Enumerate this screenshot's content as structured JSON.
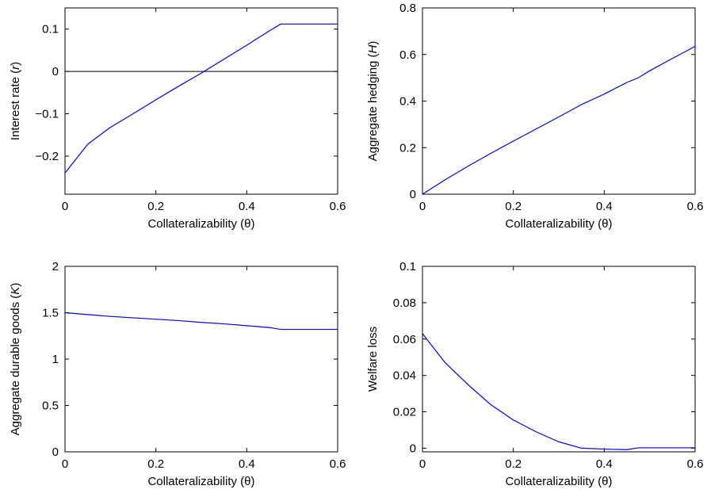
{
  "colors": {
    "series": "#0000ff",
    "axes": "#000000",
    "reference": "#000000"
  },
  "chart_data": [
    {
      "type": "line",
      "xlabel": "Collateralizability (θ)",
      "ylabel_parts": [
        "Interest rate (",
        "r",
        ")"
      ],
      "xlim": [
        0,
        0.6
      ],
      "ylim": [
        -0.29,
        0.15
      ],
      "xticks": [
        0,
        0.2,
        0.4,
        0.6
      ],
      "xtick_labels": [
        "0",
        "0.2",
        "0.4",
        "0.6"
      ],
      "yticks": [
        -0.2,
        -0.1,
        0,
        0.1
      ],
      "ytick_labels": [
        "−0.2",
        "−0.1",
        "0",
        "0.1"
      ],
      "hline": 0,
      "series": [
        {
          "x": [
            0,
            0.05,
            0.1,
            0.15,
            0.2,
            0.25,
            0.3,
            0.35,
            0.4,
            0.45,
            0.475,
            0.5,
            0.55,
            0.6
          ],
          "y": [
            -0.24,
            -0.172,
            -0.132,
            -0.1,
            -0.067,
            -0.035,
            -0.004,
            0.029,
            0.062,
            0.096,
            0.112,
            0.112,
            0.112,
            0.112
          ]
        }
      ]
    },
    {
      "type": "line",
      "xlabel": "Collateralizability (θ)",
      "ylabel_parts": [
        "Aggregate hedging (",
        "H",
        ")"
      ],
      "xlim": [
        0,
        0.6
      ],
      "ylim": [
        0,
        0.8
      ],
      "xticks": [
        0,
        0.2,
        0.4,
        0.6
      ],
      "xtick_labels": [
        "0",
        "0.2",
        "0.4",
        "0.6"
      ],
      "yticks": [
        0,
        0.2,
        0.4,
        0.6,
        0.8
      ],
      "ytick_labels": [
        "0",
        "0.2",
        "0.4",
        "0.6",
        "0.8"
      ],
      "series": [
        {
          "x": [
            0,
            0.05,
            0.1,
            0.15,
            0.2,
            0.25,
            0.3,
            0.35,
            0.4,
            0.45,
            0.475,
            0.5,
            0.55,
            0.6
          ],
          "y": [
            0,
            0.062,
            0.12,
            0.175,
            0.228,
            0.28,
            0.332,
            0.385,
            0.43,
            0.48,
            0.5,
            0.53,
            0.583,
            0.635
          ]
        }
      ]
    },
    {
      "type": "line",
      "xlabel": "Collateralizability (θ)",
      "ylabel_parts": [
        "Aggregate durable goods (",
        "K",
        ")"
      ],
      "xlim": [
        0,
        0.6
      ],
      "ylim": [
        0,
        2
      ],
      "xticks": [
        0,
        0.2,
        0.4,
        0.6
      ],
      "xtick_labels": [
        "0",
        "0.2",
        "0.4",
        "0.6"
      ],
      "yticks": [
        0,
        0.5,
        1,
        1.5,
        2
      ],
      "ytick_labels": [
        "0",
        "0.5",
        "1",
        "1.5",
        "2"
      ],
      "series": [
        {
          "x": [
            0,
            0.05,
            0.1,
            0.15,
            0.2,
            0.25,
            0.3,
            0.35,
            0.4,
            0.45,
            0.475,
            0.5,
            0.55,
            0.6
          ],
          "y": [
            1.5,
            1.48,
            1.46,
            1.445,
            1.43,
            1.415,
            1.395,
            1.38,
            1.36,
            1.34,
            1.32,
            1.32,
            1.32,
            1.32
          ]
        }
      ]
    },
    {
      "type": "line",
      "xlabel": "Collateralizability (θ)",
      "ylabel_parts": [
        "Welfare loss",
        "",
        ""
      ],
      "xlim": [
        0,
        0.6
      ],
      "ylim": [
        -0.002,
        0.1
      ],
      "xticks": [
        0,
        0.2,
        0.4,
        0.6
      ],
      "xtick_labels": [
        "0",
        "0.2",
        "0.4",
        "0.6"
      ],
      "yticks": [
        0,
        0.02,
        0.04,
        0.06,
        0.08,
        0.1
      ],
      "ytick_labels": [
        "0",
        "0.02",
        "0.04",
        "0.06",
        "0.08",
        "0.1"
      ],
      "series": [
        {
          "x": [
            0,
            0.05,
            0.1,
            0.15,
            0.2,
            0.25,
            0.3,
            0.35,
            0.4,
            0.45,
            0.475,
            0.5,
            0.55,
            0.6
          ],
          "y": [
            0.063,
            0.047,
            0.035,
            0.024,
            0.0155,
            0.009,
            0.0035,
            0.0,
            -0.0005,
            -0.0008,
            0.0002,
            0.0002,
            0.0002,
            0.0002
          ]
        }
      ]
    }
  ]
}
